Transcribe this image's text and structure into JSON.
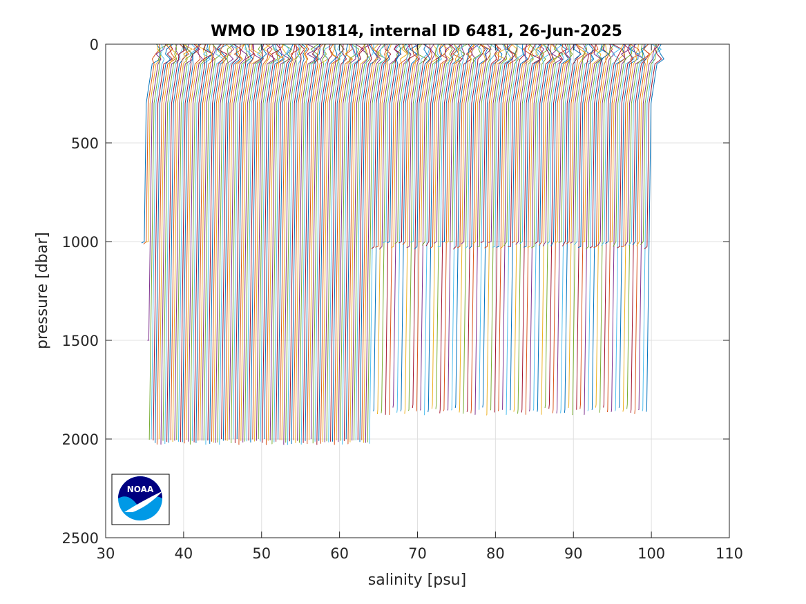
{
  "chart_data": {
    "type": "line",
    "title": "WMO ID 1901814, internal ID 6481, 26-Jun-2025",
    "xlabel": "salinity [psu]",
    "ylabel": "pressure [dbar]",
    "xlim": [
      30,
      110
    ],
    "ylim": [
      0,
      2500
    ],
    "y_reversed": true,
    "grid": true,
    "xticks": [
      "30",
      "40",
      "50",
      "60",
      "70",
      "80",
      "90",
      "100",
      "110"
    ],
    "yticks": [
      "0",
      "500",
      "1000",
      "1500",
      "2000",
      "2500"
    ],
    "series_colors": [
      "#0072bd",
      "#d95319",
      "#edb120",
      "#7e2f8e",
      "#77ac30",
      "#4dbeee",
      "#a2142f"
    ],
    "profiles": {
      "count": 260,
      "salinity_offset_start": 35.0,
      "salinity_offset_step": 0.25,
      "note_depths": "profiles up to offset ~64 reach ~2000 dbar; later profiles alternate ~1000 and ~1850 dbar"
    }
  },
  "logo": {
    "text": "NOAA",
    "colors": {
      "dark": "#000080",
      "light": "#0099e6"
    }
  }
}
